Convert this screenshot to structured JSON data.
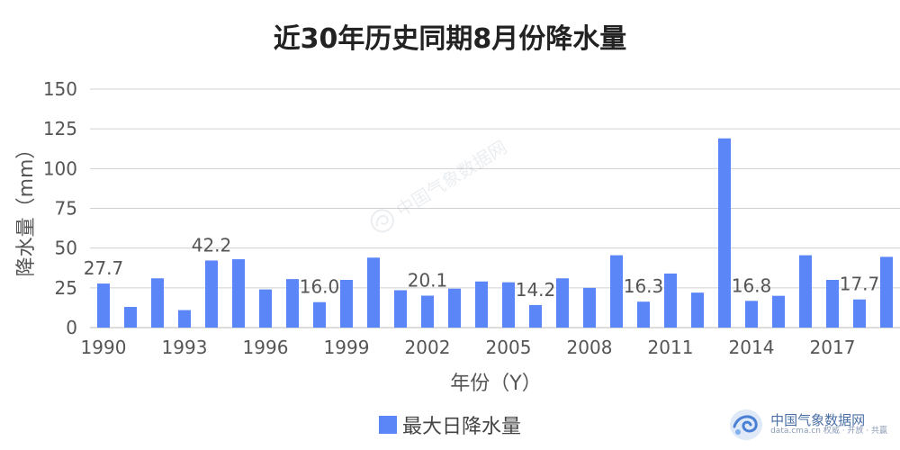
{
  "chart_data": {
    "type": "bar",
    "title": "近30年历史同期8月份降水量",
    "xlabel": "年份（Y）",
    "ylabel": "降水量（mm）",
    "ylim": [
      0,
      150
    ],
    "yticks": [
      "0",
      "25",
      "50",
      "75",
      "100",
      "125",
      "150"
    ],
    "grid": true,
    "legend_position": "bottom",
    "colors": {
      "bar": "#5a86f7",
      "grid": "#d0d0d0",
      "axis": "#b8b8b8"
    },
    "categories": [
      1990,
      1991,
      1992,
      1993,
      1994,
      1995,
      1996,
      1997,
      1998,
      1999,
      2000,
      2001,
      2002,
      2003,
      2004,
      2005,
      2006,
      2007,
      2008,
      2009,
      2010,
      2011,
      2012,
      2013,
      2014,
      2015,
      2016,
      2017,
      2018,
      2019
    ],
    "xtick_labels": [
      "1990",
      "1993",
      "1996",
      "1999",
      "2002",
      "2005",
      "2008",
      "2011",
      "2014",
      "2017"
    ],
    "series": [
      {
        "name": "最大日降水量",
        "values": [
          27.7,
          13,
          31,
          11,
          42.2,
          43,
          24,
          30.5,
          16.0,
          30,
          44,
          23.5,
          20.1,
          24.5,
          29,
          28.5,
          14.2,
          31,
          25,
          45.5,
          16.3,
          34,
          22,
          119,
          16.8,
          20,
          45.5,
          30,
          17.7,
          44.5
        ]
      }
    ],
    "data_labels": [
      {
        "category": 1990,
        "text": "27.7"
      },
      {
        "category": 1994,
        "text": "42.2"
      },
      {
        "category": 1998,
        "text": "16.0"
      },
      {
        "category": 2002,
        "text": "20.1"
      },
      {
        "category": 2006,
        "text": "14.2"
      },
      {
        "category": 2010,
        "text": "16.3"
      },
      {
        "category": 2014,
        "text": "16.8"
      },
      {
        "category": 2018,
        "text": "17.7"
      }
    ]
  },
  "brand": {
    "name": "中国气象数据网",
    "subtitle": "data.cma.cn 权威 · 开放 · 共赢",
    "icon": "cma-swirl-icon"
  },
  "watermark": {
    "text": "中国气象数据网",
    "icon": "cma-swirl-icon"
  }
}
